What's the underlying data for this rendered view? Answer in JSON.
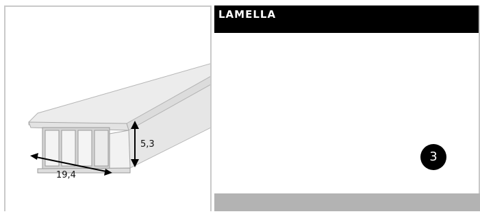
{
  "title": "LAMELLA",
  "dimensions": {
    "height": "5,3",
    "width": "19,4"
  },
  "badge": 3
}
